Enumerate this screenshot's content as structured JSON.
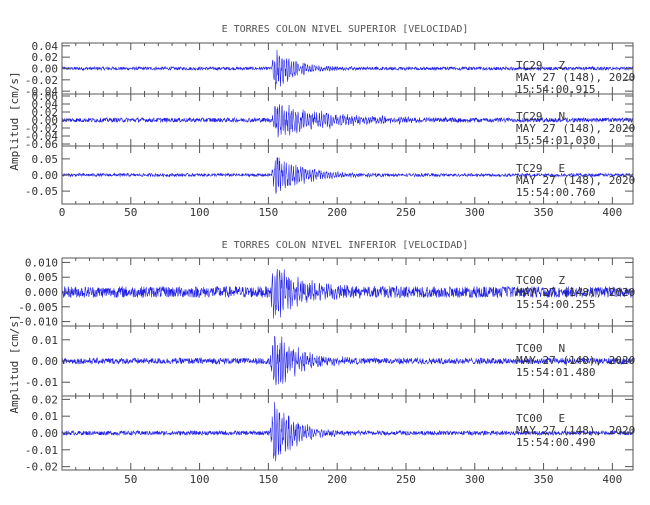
{
  "colors": {
    "trace": "#1f1fe6",
    "axis": "#555555",
    "text": "#333333"
  },
  "chart_data": [
    {
      "type": "line",
      "title": "E TORRES COLON NIVEL SUPERIOR [VELOCIDAD]",
      "ylabel": "Amplitud [cm/s]",
      "xlim": [
        0,
        415
      ],
      "x_ticks": [
        "0",
        "50",
        "100",
        "150",
        "200",
        "250",
        "300",
        "350",
        "400"
      ],
      "event_onset_x": 153,
      "panels": [
        {
          "station": "TC29",
          "component": "Z",
          "date": "MAY 27 (148), 2020",
          "time": "15:54:00.915",
          "ylim": [
            -0.045,
            0.045
          ],
          "y_ticks": [
            "0.04",
            "0.02",
            "0.00",
            "-0.02",
            "-0.04"
          ],
          "noise_amp": 0.0018,
          "peak_amp": 0.045,
          "decay_s": 14
        },
        {
          "station": "TC29",
          "component": "N",
          "date": "MAY 27 (148), 2020",
          "time": "15:54:01.030",
          "ylim": [
            -0.065,
            0.065
          ],
          "y_ticks": [
            "0.06",
            "0.04",
            "0.02",
            "0.00",
            "-0.02",
            "-0.04",
            "-0.06"
          ],
          "noise_amp": 0.0035,
          "peak_amp": 0.05,
          "decay_s": 40
        },
        {
          "station": "TC29",
          "component": "E",
          "date": "MAY 27 (148), 2020",
          "time": "15:54:00.760",
          "ylim": [
            -0.09,
            0.09
          ],
          "y_ticks": [
            "0.05",
            "0.00",
            "-0.05"
          ],
          "noise_amp": 0.003,
          "peak_amp": 0.07,
          "decay_s": 22
        }
      ]
    },
    {
      "type": "line",
      "title": "E TORRES COLON NIVEL INFERIOR [VELOCIDAD]",
      "ylabel": "Amplitud [cm/s]",
      "xlim": [
        0,
        415
      ],
      "x_ticks": [
        "50",
        "100",
        "150",
        "200",
        "250",
        "300",
        "350",
        "400"
      ],
      "event_onset_x": 152,
      "panels": [
        {
          "station": "TC00",
          "component": "Z",
          "date": "MAY 27 (148), 2020",
          "time": "15:54:00.255",
          "ylim": [
            -0.0115,
            0.0115
          ],
          "y_ticks": [
            "0.010",
            "0.005",
            "0.000",
            "-0.005",
            "-0.010"
          ],
          "noise_amp": 0.0012,
          "peak_amp": 0.0115,
          "decay_s": 20
        },
        {
          "station": "TC00",
          "component": "N",
          "date": "MAY 27 (148), 2020",
          "time": "15:54:01.480",
          "ylim": [
            -0.0165,
            0.0165
          ],
          "y_ticks": [
            "0.01",
            "0.00",
            "-0.01"
          ],
          "noise_amp": 0.0009,
          "peak_amp": 0.0165,
          "decay_s": 18
        },
        {
          "station": "TC00",
          "component": "E",
          "date": "MAY 27 (148), 2020",
          "time": "15:54:00.490",
          "ylim": [
            -0.022,
            0.022
          ],
          "y_ticks": [
            "0.02",
            "0.01",
            "0.00",
            "-0.01",
            "-0.02"
          ],
          "noise_amp": 0.0008,
          "peak_amp": 0.022,
          "decay_s": 16
        }
      ]
    }
  ]
}
